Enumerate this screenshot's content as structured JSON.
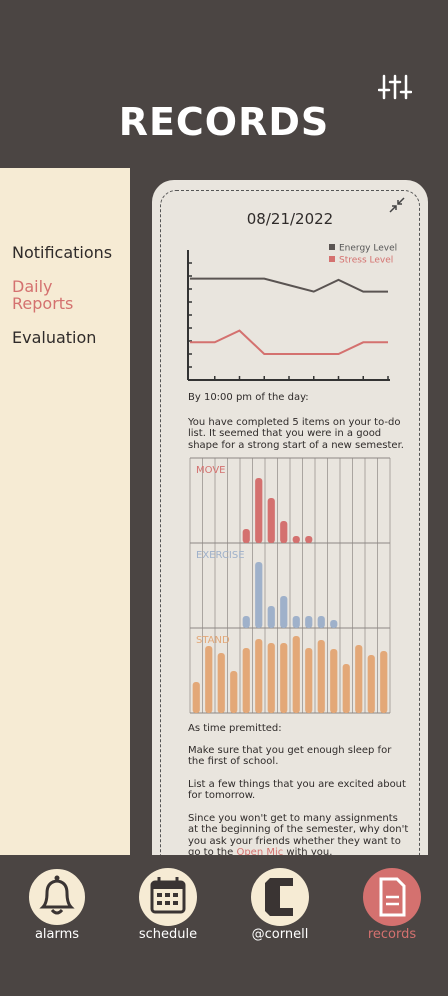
{
  "header": {
    "title": "RECORDS"
  },
  "sidebar": {
    "items": [
      {
        "label": "Notifications",
        "active": false
      },
      {
        "label": "Daily Reports",
        "active": true
      },
      {
        "label": "Evaluation",
        "active": false
      }
    ]
  },
  "card": {
    "date": "08/21/2022",
    "intro": "By 10:00 pm of the day:",
    "summary": "You have completed 5 items on your to-do list. It seemed that you were in a good shape for a strong start of a new semester.",
    "tips_heading": "As time premitted:",
    "tips": [
      "Make sure that you get enough sleep for the first of school.",
      "List a few things that you are excited about for tomorrow.",
      {
        "text": "Since you won't get to many assignments at the beginning of the semester, why don't you ask your friends whether they want to go to the ",
        "link": "Open Mic",
        "after": " with you."
      }
    ]
  },
  "chart_data": [
    {
      "type": "line",
      "categories": [
        null,
        null,
        null,
        null,
        null,
        null,
        null,
        null,
        null
      ],
      "series": [
        {
          "name": "Energy Level",
          "color": "#5a5452",
          "values": [
            7.8,
            7.8,
            7.8,
            7.8,
            7.3,
            6.8,
            7.7,
            6.8,
            6.8
          ]
        },
        {
          "name": "Stress Level",
          "color": "#d4716f",
          "values": [
            2.9,
            2.9,
            3.8,
            2.0,
            2.0,
            2.0,
            2.0,
            2.9,
            2.9
          ]
        }
      ],
      "ylim": [
        0,
        10
      ],
      "yticks": [
        1,
        2,
        3,
        4,
        5,
        6,
        7,
        8,
        9
      ]
    },
    {
      "type": "bar",
      "categories": [
        null,
        null,
        null,
        null,
        null,
        null,
        null,
        null,
        null,
        null,
        null,
        null,
        null,
        null,
        null,
        null
      ],
      "series": [
        {
          "name": "MOVE",
          "color": "#d4716f",
          "values": [
            0,
            0,
            0,
            0,
            14,
            65,
            45,
            22,
            7,
            7,
            0,
            0,
            0,
            0,
            0,
            0
          ]
        },
        {
          "name": "EXERCISE",
          "color": "#9fb1ca",
          "values": [
            0,
            0,
            0,
            0,
            12,
            66,
            22,
            32,
            12,
            12,
            12,
            8,
            0,
            0,
            0,
            0
          ]
        },
        {
          "name": "STAND",
          "color": "#e3a878",
          "values": [
            31,
            67,
            60,
            42,
            65,
            74,
            70,
            70,
            77,
            65,
            73,
            64,
            49,
            68,
            58,
            62
          ]
        }
      ],
      "ylim": [
        0,
        85
      ]
    }
  ],
  "nav": {
    "items": [
      {
        "label": "alarms",
        "active": false
      },
      {
        "label": "schedule",
        "active": false
      },
      {
        "label": "@cornell",
        "active": false
      },
      {
        "label": "records",
        "active": true
      }
    ]
  }
}
